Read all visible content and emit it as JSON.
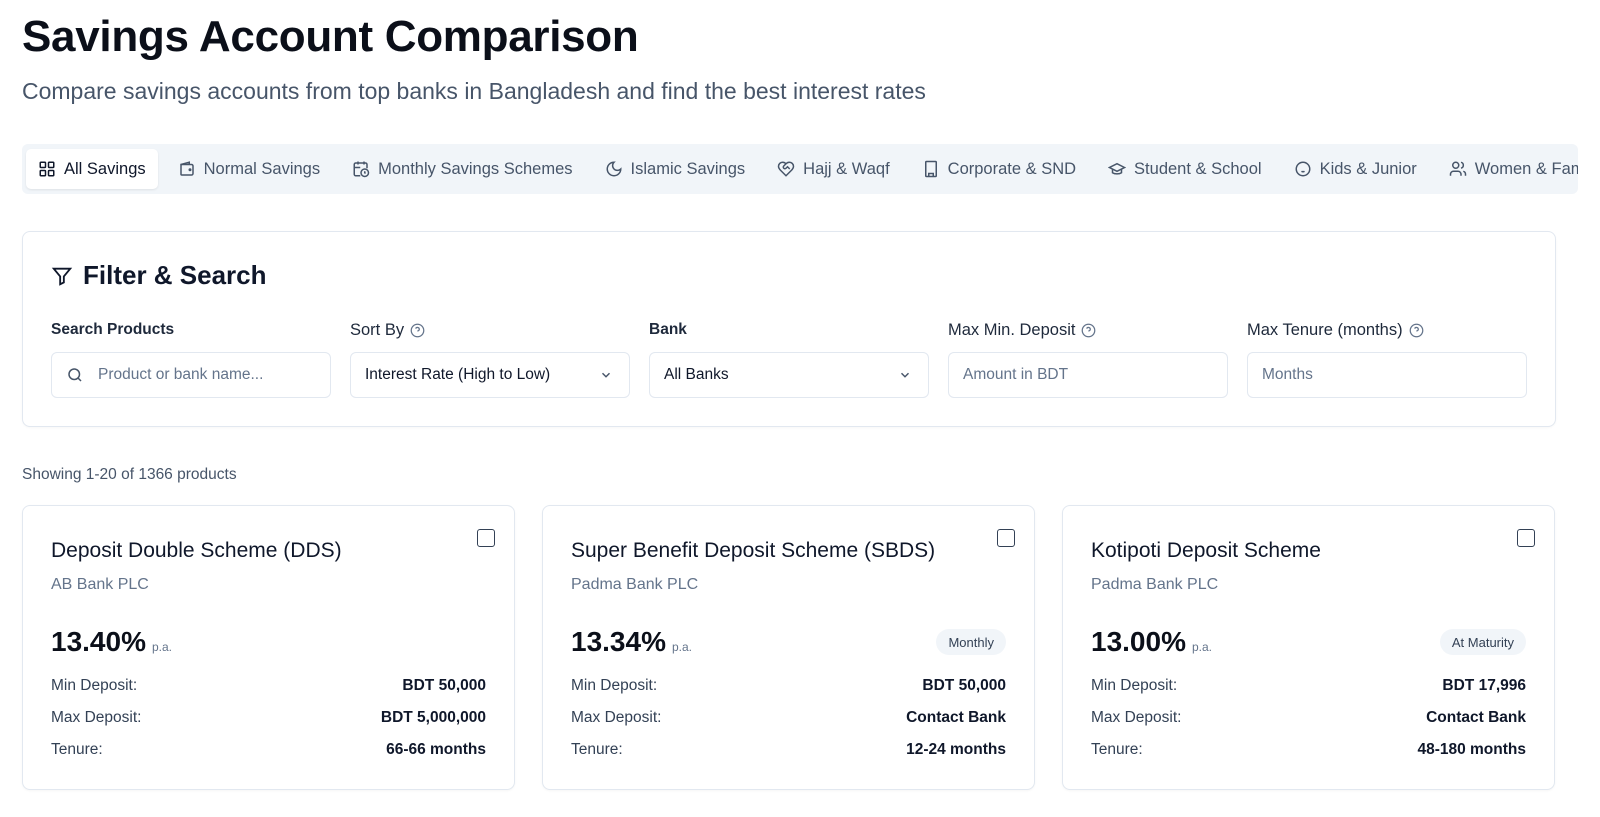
{
  "header": {
    "title": "Savings Account Comparison",
    "subtitle": "Compare savings accounts from top banks in Bangladesh and find the best interest rates"
  },
  "tabs": [
    {
      "label": "All Savings",
      "icon": "grid-icon",
      "active": true
    },
    {
      "label": "Normal Savings",
      "icon": "wallet-icon",
      "active": false
    },
    {
      "label": "Monthly Savings Schemes",
      "icon": "calendar-clock-icon",
      "active": false
    },
    {
      "label": "Islamic Savings",
      "icon": "moon-icon",
      "active": false
    },
    {
      "label": "Hajj & Waqf",
      "icon": "heart-handshake-icon",
      "active": false
    },
    {
      "label": "Corporate & SND",
      "icon": "building-icon",
      "active": false
    },
    {
      "label": "Student & School",
      "icon": "graduation-cap-icon",
      "active": false
    },
    {
      "label": "Kids & Junior",
      "icon": "baby-icon",
      "active": false
    },
    {
      "label": "Women & Family",
      "icon": "users-icon",
      "active": false
    }
  ],
  "filter": {
    "title": "Filter & Search",
    "search": {
      "label": "Search Products",
      "placeholder": "Product or bank name..."
    },
    "sort": {
      "label": "Sort By",
      "value": "Interest Rate (High to Low)"
    },
    "bank": {
      "label": "Bank",
      "value": "All Banks"
    },
    "min_deposit": {
      "label": "Max Min. Deposit",
      "placeholder": "Amount in BDT"
    },
    "tenure": {
      "label": "Max Tenure (months)",
      "placeholder": "Months"
    }
  },
  "results": {
    "count_text": "Showing 1-20 of 1366 products"
  },
  "labels": {
    "min_deposit": "Min Deposit:",
    "max_deposit": "Max Deposit:",
    "tenure": "Tenure:",
    "per_annum": "p.a."
  },
  "products": [
    {
      "name": "Deposit Double Scheme (DDS)",
      "bank": "AB Bank PLC",
      "rate": "13.40%",
      "payout": "",
      "min_deposit": "BDT 50,000",
      "max_deposit": "BDT 5,000,000",
      "tenure": "66-66 months"
    },
    {
      "name": "Super Benefit Deposit Scheme (SBDS)",
      "bank": "Padma Bank PLC",
      "rate": "13.34%",
      "payout": "Monthly",
      "min_deposit": "BDT 50,000",
      "max_deposit": "Contact Bank",
      "tenure": "12-24 months"
    },
    {
      "name": "Kotipoti Deposit Scheme",
      "bank": "Padma Bank PLC",
      "rate": "13.00%",
      "payout": "At Maturity",
      "min_deposit": "BDT 17,996",
      "max_deposit": "Contact Bank",
      "tenure": "48-180 months"
    }
  ]
}
